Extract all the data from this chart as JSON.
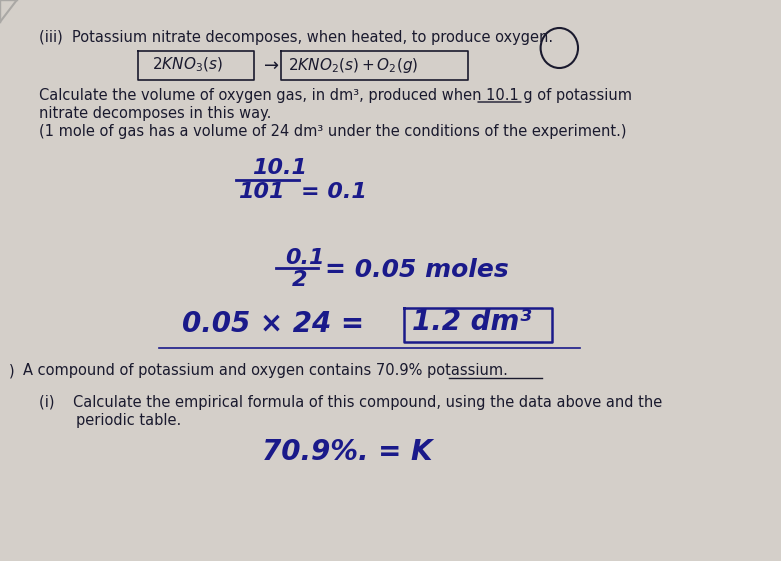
{
  "bg_color": "#d4cfc9",
  "paper_color": "#e8e4df",
  "title_iii": "(iii)  Potassium nitrate decomposes, when heated, to produce oxygen.",
  "equation": "2KNO₃(s) → 2KNO₂(s) + O₂(g)",
  "question_line1": "Calculate the volume of oxygen gas, in dm³, produced when 10.1 g of potassium",
  "question_line2": "nitrate decomposes in this way.",
  "question_line3": "(1 mole of gas has a volume of 24 dm³ under the conditions of the experiment.)",
  "calc1_numerator": "10.1",
  "calc1_denominator": "101",
  "calc1_result": "= 0.1",
  "calc2": "0.1",
  "calc2_denom": "2",
  "calc2_result": "= 0.05 moles",
  "calc3": "0.05 × 24 = 1.2 dm³",
  "next_section_prefix": ") ",
  "next_section_text": "A compound of potassium and oxygen contains 70.9% potassium.",
  "sub_i": "(i)    Calculate the empirical formula of this compound, using the data above and the",
  "sub_i_line2": "        periodic table.",
  "last_line": "70.9%. = K",
  "text_color": "#1a1a2e",
  "handwriting_color": "#1a1a8a"
}
